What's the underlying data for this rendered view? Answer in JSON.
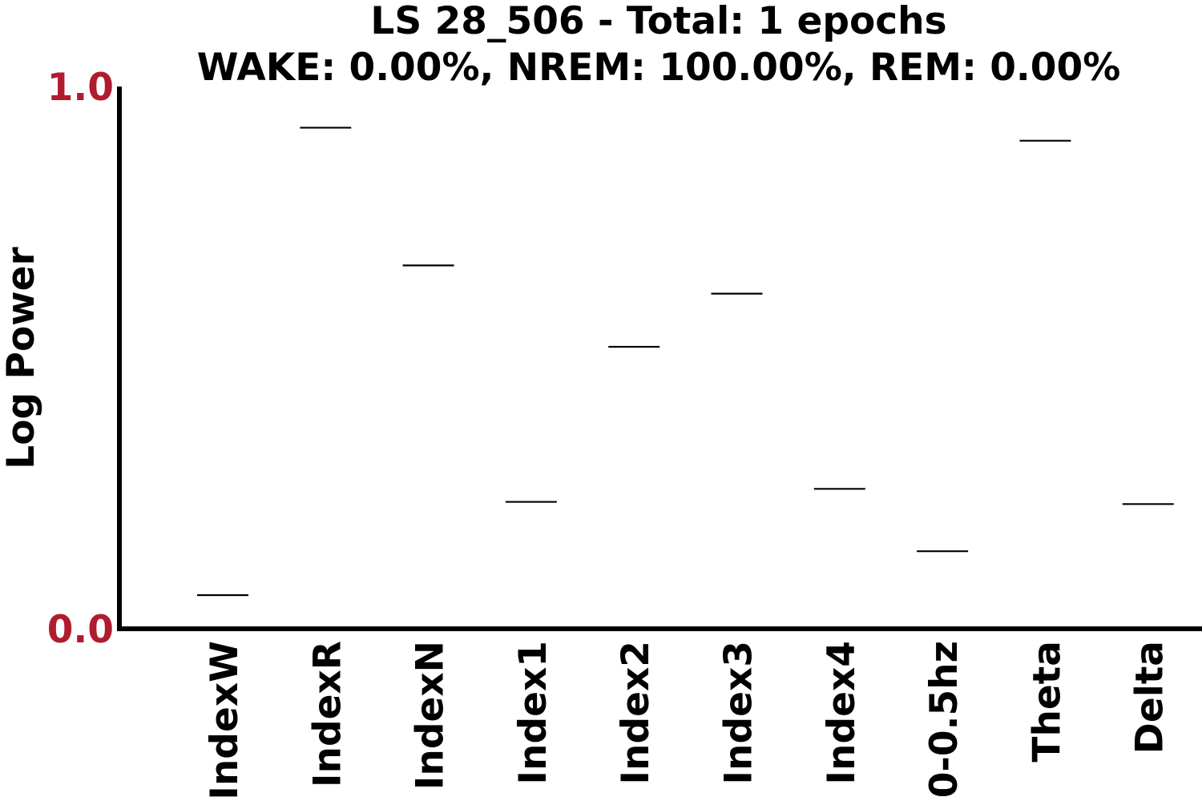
{
  "chart_data": {
    "type": "scatter",
    "marker": "horizontal-line",
    "title": "LS 28_506 - Total: 1 epochs",
    "subtitle": "WAKE: 0.00%, NREM: 100.00%, REM: 0.00%",
    "ylabel": "Log Power",
    "xlabel": "",
    "categories": [
      "IndexW",
      "IndexR",
      "IndexN",
      "Index1",
      "Index2",
      "Index3",
      "Index4",
      "0-0.5hz",
      "Theta",
      "Delta"
    ],
    "values": [
      0.062,
      0.924,
      0.67,
      0.234,
      0.52,
      0.618,
      0.258,
      0.143,
      0.9,
      0.23
    ],
    "ylim": [
      0,
      1
    ],
    "y_ticks": [
      "0.0",
      "1.0"
    ],
    "grid": false,
    "colors": {
      "tick_label": "#b01c2e",
      "axis": "#000000",
      "marker": "#000000",
      "text": "#000000"
    }
  }
}
